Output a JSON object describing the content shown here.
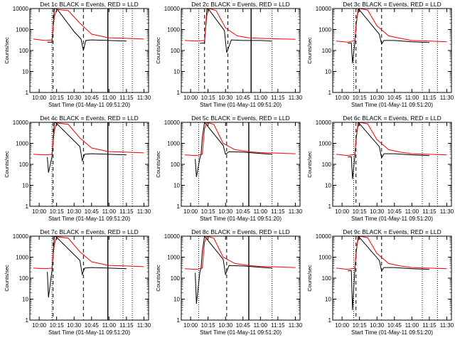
{
  "chart_data": [
    {
      "type": "line",
      "title": "Det 1c BLACK = Events, RED = LLD",
      "xlabel": "Start Time (01-May-11 09:51:20)",
      "ylabel": "Counts/sec",
      "scale_y": "log",
      "ylim": [
        1,
        10000
      ],
      "xticks": [
        "10:00",
        "10:15",
        "10:30",
        "10:45",
        "11:00",
        "11:15",
        "11:30"
      ],
      "yticks": [
        "1",
        "10",
        "100",
        "1000",
        "10000"
      ],
      "series": [
        {
          "name": "BLACK = Events",
          "color": "#000000",
          "x": [
            "10:07",
            "10:11",
            "10:12",
            "10:13",
            "10:14",
            "10:15",
            "10:30",
            "10:36",
            "10:38",
            "10:40",
            "10:45",
            "11:00",
            "11:15"
          ],
          "y": [
            250,
            250,
            1200,
            9000,
            10000,
            10000,
            800,
            350,
            100,
            300,
            320,
            300,
            280
          ]
        },
        {
          "name": "RED = LLD",
          "color": "#ff0000",
          "x": [
            "09:55",
            "10:05",
            "10:11",
            "10:13",
            "10:15",
            "10:25",
            "10:35",
            "10:45",
            "11:00",
            "11:15",
            "11:30"
          ],
          "y": [
            350,
            300,
            320,
            4000,
            9000,
            8000,
            2000,
            600,
            400,
            380,
            350
          ]
        }
      ],
      "vlines": [
        {
          "x": "10:11",
          "style": "dotted"
        },
        {
          "x": "10:12",
          "style": "dashed"
        },
        {
          "x": "10:38",
          "style": "dashed"
        },
        {
          "x": "10:59",
          "style": "solid"
        },
        {
          "x": "11:12",
          "style": "dotted"
        },
        {
          "x": "11:20",
          "style": "dotted"
        }
      ]
    },
    {
      "type": "line",
      "title": "Det 2c BLACK = Events, RED = LLD",
      "xlabel": "Start Time (01-May-11 09:51:20)",
      "ylabel": "Counts/sec",
      "scale_y": "log",
      "ylim": [
        1,
        10000
      ],
      "xticks": [
        "10:00",
        "10:15",
        "10:30",
        "10:45",
        "11:00",
        "11:15",
        "11:30"
      ],
      "yticks": [
        "1",
        "10",
        "100",
        "1000",
        "10000"
      ],
      "series": [
        {
          "name": "BLACK = Events",
          "color": "#000000",
          "x": [
            "10:08",
            "10:12",
            "10:13",
            "10:14",
            "10:15",
            "10:29",
            "10:31",
            "10:35",
            "10:45",
            "11:00",
            "11:10"
          ],
          "y": [
            220,
            230,
            1500,
            9500,
            10000,
            900,
            80,
            320,
            300,
            300,
            280
          ]
        },
        {
          "name": "RED = LLD",
          "color": "#ff0000",
          "x": [
            "09:55",
            "10:05",
            "10:12",
            "10:14",
            "10:16",
            "10:22",
            "10:30",
            "10:40",
            "10:50",
            "11:00",
            "11:15",
            "11:30"
          ],
          "y": [
            300,
            280,
            300,
            5000,
            10000,
            8000,
            1200,
            500,
            400,
            380,
            360,
            340
          ]
        }
      ],
      "vlines": [
        {
          "x": "10:07",
          "style": "dotted"
        },
        {
          "x": "10:12",
          "style": "dashed"
        },
        {
          "x": "10:32",
          "style": "dashed"
        },
        {
          "x": "10:52",
          "style": "solid"
        },
        {
          "x": "11:10",
          "style": "dotted"
        }
      ]
    },
    {
      "type": "line",
      "title": "Det 3c BLACK = Events, RED = LLD",
      "xlabel": "Start Time (01-May-11 09:51:20)",
      "ylabel": "Counts/sec",
      "scale_y": "log",
      "ylim": [
        1,
        10000
      ],
      "xticks": [
        "10:00",
        "10:15",
        "10:30",
        "10:45",
        "11:00",
        "11:15",
        "11:30"
      ],
      "yticks": [
        "1",
        "10",
        "100",
        "1000",
        "10000"
      ],
      "series": [
        {
          "name": "BLACK = Events",
          "color": "#000000",
          "x": [
            "10:05",
            "10:08",
            "10:09",
            "10:11",
            "10:12",
            "10:14",
            "10:32",
            "10:34",
            "10:36",
            "10:45",
            "11:00",
            "11:15"
          ],
          "y": [
            220,
            230,
            25,
            230,
            1500,
            10000,
            600,
            200,
            300,
            300,
            260,
            240
          ]
        },
        {
          "name": "RED = LLD",
          "color": "#ff0000",
          "x": [
            "09:55",
            "10:05",
            "10:11",
            "10:13",
            "10:15",
            "10:22",
            "10:30",
            "10:40",
            "10:50",
            "11:00",
            "11:15",
            "11:30"
          ],
          "y": [
            280,
            250,
            300,
            4500,
            10000,
            8500,
            1500,
            500,
            380,
            300,
            280,
            260
          ]
        }
      ],
      "vlines": [
        {
          "x": "10:10",
          "style": "dotted"
        },
        {
          "x": "10:12",
          "style": "dashed"
        },
        {
          "x": "10:34",
          "style": "dashed"
        },
        {
          "x": "11:09",
          "style": "dotted"
        },
        {
          "x": "11:22",
          "style": "dotted"
        }
      ]
    },
    {
      "type": "line",
      "title": "Det 4c BLACK = Events, RED = LLD",
      "xlabel": "Start Time (01-May-11 09:51:20)",
      "ylabel": "Counts/sec",
      "scale_y": "log",
      "ylim": [
        1,
        10000
      ],
      "xticks": [
        "10:00",
        "10:15",
        "10:30",
        "10:45",
        "11:00",
        "11:15",
        "11:30"
      ],
      "yticks": [
        "1",
        "10",
        "100",
        "1000",
        "10000"
      ],
      "series": [
        {
          "name": "BLACK = Events",
          "color": "#000000",
          "x": [
            "10:07",
            "10:08",
            "10:11",
            "10:12",
            "10:13",
            "10:14",
            "10:35",
            "10:37",
            "10:39",
            "10:45",
            "11:00",
            "11:15"
          ],
          "y": [
            220,
            40,
            230,
            1300,
            9000,
            10000,
            700,
            150,
            300,
            320,
            300,
            280
          ]
        },
        {
          "name": "RED = LLD",
          "color": "#ff0000",
          "x": [
            "09:55",
            "10:05",
            "10:11",
            "10:13",
            "10:15",
            "10:25",
            "10:35",
            "10:45",
            "11:00",
            "11:15",
            "11:30"
          ],
          "y": [
            300,
            280,
            300,
            4000,
            9500,
            8000,
            1800,
            600,
            400,
            380,
            350
          ]
        }
      ],
      "vlines": [
        {
          "x": "10:11",
          "style": "dotted"
        },
        {
          "x": "10:12",
          "style": "dashed"
        },
        {
          "x": "10:38",
          "style": "dashed"
        },
        {
          "x": "10:59",
          "style": "solid"
        },
        {
          "x": "11:12",
          "style": "dotted"
        },
        {
          "x": "11:20",
          "style": "dotted"
        }
      ]
    },
    {
      "type": "line",
      "title": "Det 5c BLACK = Events, RED = LLD",
      "xlabel": "Start Time (01-May-11 09:51:20)",
      "ylabel": "Counts/sec",
      "scale_y": "log",
      "ylim": [
        1,
        10000
      ],
      "xticks": [
        "10:00",
        "10:15",
        "10:30",
        "10:45",
        "11:00",
        "11:15",
        "11:30"
      ],
      "yticks": [
        "1",
        "10",
        "100",
        "1000",
        "10000"
      ],
      "series": [
        {
          "name": "BLACK = Events",
          "color": "#000000",
          "x": [
            "10:04",
            "10:05",
            "10:08",
            "10:09",
            "10:10",
            "10:12",
            "10:28",
            "10:30",
            "10:33",
            "10:45",
            "11:00",
            "11:10"
          ],
          "y": [
            180,
            25,
            200,
            300,
            1800,
            10000,
            800,
            300,
            400,
            380,
            330,
            300
          ]
        },
        {
          "name": "RED = LLD",
          "color": "#ff0000",
          "x": [
            "09:55",
            "10:05",
            "10:10",
            "10:12",
            "10:14",
            "10:20",
            "10:28",
            "10:38",
            "10:50",
            "11:00",
            "11:15",
            "11:30"
          ],
          "y": [
            280,
            260,
            300,
            5000,
            10000,
            8000,
            1000,
            500,
            400,
            360,
            340,
            320
          ]
        }
      ],
      "vlines": [
        {
          "x": "10:07",
          "style": "dotted"
        },
        {
          "x": "10:31",
          "style": "dashed"
        },
        {
          "x": "10:50",
          "style": "solid"
        },
        {
          "x": "11:10",
          "style": "dotted"
        }
      ]
    },
    {
      "type": "line",
      "title": "Det 6c BLACK = Events, RED = LLD",
      "xlabel": "Start Time (01-May-11 09:51:20)",
      "ylabel": "Counts/sec",
      "scale_y": "log",
      "ylim": [
        1,
        10000
      ],
      "xticks": [
        "10:00",
        "10:15",
        "10:30",
        "10:45",
        "11:00",
        "11:15",
        "11:30"
      ],
      "yticks": [
        "1",
        "10",
        "100",
        "1000",
        "10000"
      ],
      "series": [
        {
          "name": "BLACK = Events",
          "color": "#000000",
          "x": [
            "10:05",
            "10:08",
            "10:09",
            "10:11",
            "10:12",
            "10:14",
            "10:32",
            "10:34",
            "10:36",
            "10:45",
            "11:00",
            "11:15"
          ],
          "y": [
            220,
            230,
            20,
            230,
            1500,
            10000,
            700,
            200,
            320,
            320,
            280,
            260
          ]
        },
        {
          "name": "RED = LLD",
          "color": "#ff0000",
          "x": [
            "09:55",
            "10:05",
            "10:11",
            "10:13",
            "10:15",
            "10:22",
            "10:30",
            "10:40",
            "10:50",
            "11:00",
            "11:15",
            "11:30"
          ],
          "y": [
            300,
            260,
            300,
            4500,
            10000,
            8500,
            1500,
            500,
            380,
            320,
            300,
            280
          ]
        }
      ],
      "vlines": [
        {
          "x": "10:10",
          "style": "dotted"
        },
        {
          "x": "10:12",
          "style": "dashed"
        },
        {
          "x": "10:34",
          "style": "dashed"
        },
        {
          "x": "11:09",
          "style": "dotted"
        },
        {
          "x": "11:22",
          "style": "dotted"
        }
      ]
    },
    {
      "type": "line",
      "title": "Det 7c BLACK = Events, RED = LLD",
      "xlabel": "Start Time (01-May-11 09:51:20)",
      "ylabel": "Counts/sec",
      "scale_y": "log",
      "ylim": [
        1,
        10000
      ],
      "xticks": [
        "10:00",
        "10:15",
        "10:30",
        "10:45",
        "11:00",
        "11:15",
        "11:30"
      ],
      "yticks": [
        "1",
        "10",
        "100",
        "1000",
        "10000"
      ],
      "series": [
        {
          "name": "BLACK = Events",
          "color": "#000000",
          "x": [
            "10:07",
            "10:08",
            "10:11",
            "10:12",
            "10:13",
            "10:14",
            "10:35",
            "10:37",
            "10:39",
            "10:45",
            "11:00",
            "11:15"
          ],
          "y": [
            200,
            12,
            230,
            1300,
            9000,
            10000,
            700,
            150,
            300,
            320,
            300,
            280
          ]
        },
        {
          "name": "RED = LLD",
          "color": "#ff0000",
          "x": [
            "09:55",
            "10:05",
            "10:11",
            "10:13",
            "10:15",
            "10:25",
            "10:35",
            "10:45",
            "11:00",
            "11:15",
            "11:30"
          ],
          "y": [
            300,
            280,
            300,
            4000,
            9500,
            8000,
            1800,
            600,
            400,
            380,
            350
          ]
        }
      ],
      "vlines": [
        {
          "x": "10:11",
          "style": "dotted"
        },
        {
          "x": "10:12",
          "style": "dashed"
        },
        {
          "x": "10:38",
          "style": "dashed"
        },
        {
          "x": "10:59",
          "style": "solid"
        },
        {
          "x": "11:12",
          "style": "dotted"
        },
        {
          "x": "11:20",
          "style": "dotted"
        }
      ]
    },
    {
      "type": "line",
      "title": "Det 8c BLACK = Events, RED = LLD",
      "xlabel": "Start Time (01-May-11 09:51:20)",
      "ylabel": "Counts/sec",
      "scale_y": "log",
      "ylim": [
        1,
        10000
      ],
      "xticks": [
        "10:00",
        "10:15",
        "10:30",
        "10:45",
        "11:00",
        "11:15",
        "11:30"
      ],
      "yticks": [
        "1",
        "10",
        "100",
        "1000",
        "10000"
      ],
      "series": [
        {
          "name": "BLACK = Events",
          "color": "#000000",
          "x": [
            "10:04",
            "10:05",
            "10:08",
            "10:09",
            "10:10",
            "10:12",
            "10:28",
            "10:30",
            "10:33",
            "10:45",
            "11:00",
            "11:10"
          ],
          "y": [
            180,
            6,
            200,
            300,
            1800,
            10000,
            800,
            150,
            400,
            380,
            330,
            300
          ]
        },
        {
          "name": "RED = LLD",
          "color": "#ff0000",
          "x": [
            "09:55",
            "10:05",
            "10:10",
            "10:12",
            "10:14",
            "10:20",
            "10:28",
            "10:38",
            "10:50",
            "11:00",
            "11:15",
            "11:30"
          ],
          "y": [
            280,
            260,
            300,
            5000,
            10000,
            8000,
            1000,
            500,
            400,
            360,
            340,
            320
          ]
        }
      ],
      "vlines": [
        {
          "x": "10:07",
          "style": "dotted"
        },
        {
          "x": "10:31",
          "style": "dashed"
        },
        {
          "x": "10:50",
          "style": "solid"
        },
        {
          "x": "11:10",
          "style": "dotted"
        }
      ]
    },
    {
      "type": "line",
      "title": "Det 9c BLACK = Events, RED = LLD",
      "xlabel": "Start Time (01-May-11 09:51:20)",
      "ylabel": "Counts/sec",
      "scale_y": "log",
      "ylim": [
        1,
        10000
      ],
      "xticks": [
        "10:00",
        "10:15",
        "10:30",
        "10:45",
        "11:00",
        "11:15",
        "11:30"
      ],
      "yticks": [
        "1",
        "10",
        "100",
        "1000",
        "10000"
      ],
      "series": [
        {
          "name": "BLACK = Events",
          "color": "#000000",
          "x": [
            "10:05",
            "10:08",
            "10:09",
            "10:11",
            "10:12",
            "10:14",
            "10:32",
            "10:34",
            "10:36",
            "10:45",
            "11:00",
            "11:15"
          ],
          "y": [
            220,
            230,
            3,
            230,
            1500,
            10000,
            700,
            220,
            320,
            320,
            280,
            260
          ]
        },
        {
          "name": "RED = LLD",
          "color": "#ff0000",
          "x": [
            "09:55",
            "10:05",
            "10:11",
            "10:13",
            "10:15",
            "10:22",
            "10:30",
            "10:40",
            "10:50",
            "11:00",
            "11:15",
            "11:30"
          ],
          "y": [
            300,
            260,
            300,
            4500,
            10000,
            8500,
            1500,
            500,
            380,
            320,
            300,
            280
          ]
        }
      ],
      "vlines": [
        {
          "x": "10:10",
          "style": "dotted"
        },
        {
          "x": "10:12",
          "style": "dashed"
        },
        {
          "x": "10:34",
          "style": "dashed"
        },
        {
          "x": "11:09",
          "style": "dotted"
        },
        {
          "x": "11:22",
          "style": "dotted"
        }
      ]
    }
  ]
}
